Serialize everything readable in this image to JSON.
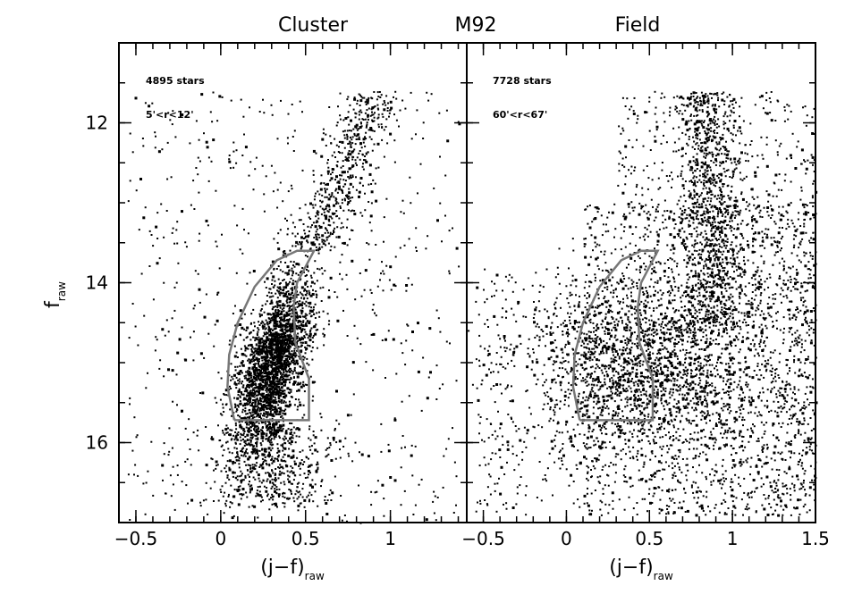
{
  "chart_data": {
    "type": "scatter",
    "titles": [
      "Cluster",
      "M92",
      "Field"
    ],
    "ylim": [
      17,
      11
    ],
    "yticks": [
      12,
      14,
      16
    ],
    "ytick_labels": [
      "12",
      "14",
      "16"
    ],
    "ylabel": {
      "main": "f",
      "sub": "raw"
    },
    "panels": [
      {
        "name": "Cluster",
        "xlim": [
          -0.6,
          1.45
        ],
        "xticks": [
          -0.5,
          0,
          0.5,
          1
        ],
        "xtick_labels": [
          "−0.5",
          "0",
          "0.5",
          "1"
        ],
        "xlabel": {
          "main": "(j−f)",
          "sub": "raw"
        },
        "annotations": [
          "4895 stars",
          "5'<r<12'"
        ],
        "point_density": "high in main-sequence turnoff region"
      },
      {
        "name": "Field",
        "xlim": [
          -0.6,
          1.5
        ],
        "xticks": [
          -0.5,
          0,
          0.5,
          1,
          1.5
        ],
        "xtick_labels": [
          "−0.5",
          "0",
          "0.5",
          "1",
          "1.5"
        ],
        "xlabel": {
          "main": "(j−f)",
          "sub": "raw"
        },
        "annotations": [
          "7728 stars",
          "60'<r<67'"
        ],
        "point_density": "broad field-star distribution"
      }
    ],
    "selection_polygon": {
      "color": "#777777",
      "vertices": [
        [
          0.08,
          15.72
        ],
        [
          0.04,
          15.3
        ],
        [
          0.05,
          14.9
        ],
        [
          0.1,
          14.5
        ],
        [
          0.2,
          14.05
        ],
        [
          0.33,
          13.72
        ],
        [
          0.45,
          13.6
        ],
        [
          0.55,
          13.6
        ],
        [
          0.45,
          14.0
        ],
        [
          0.43,
          14.3
        ],
        [
          0.44,
          14.75
        ],
        [
          0.52,
          15.2
        ],
        [
          0.52,
          15.72
        ],
        [
          0.08,
          15.72
        ]
      ]
    }
  }
}
